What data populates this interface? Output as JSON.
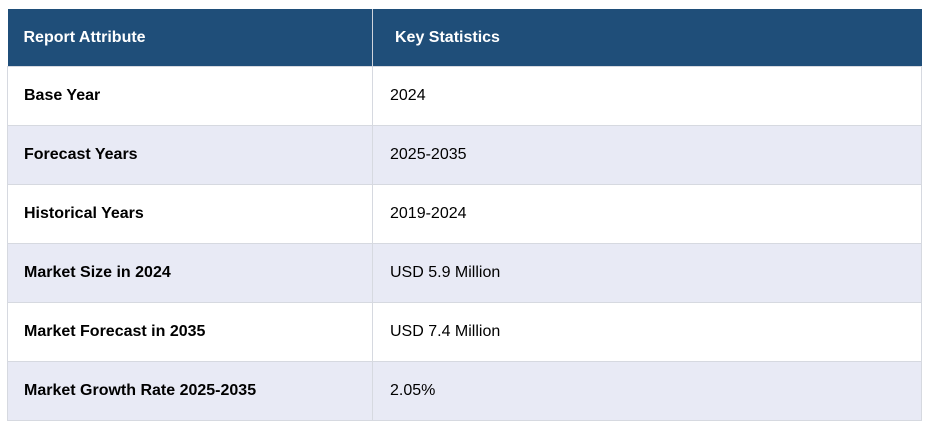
{
  "table": {
    "headers": [
      "Report Attribute",
      "Key Statistics"
    ],
    "rows": [
      [
        "Base Year",
        "2024"
      ],
      [
        "Forecast Years",
        "2025-2035"
      ],
      [
        "Historical Years",
        "2019-2024"
      ],
      [
        "Market Size in 2024",
        "USD 5.9 Million"
      ],
      [
        "Market Forecast in 2035",
        "USD 7.4 Million"
      ],
      [
        "Market Growth Rate 2025-2035",
        "2.05%"
      ]
    ]
  },
  "colors": {
    "header_bg": "#1f4e79",
    "header_text": "#ffffff",
    "row_alt_bg": "#e8eaf5",
    "row_bg": "#ffffff"
  }
}
